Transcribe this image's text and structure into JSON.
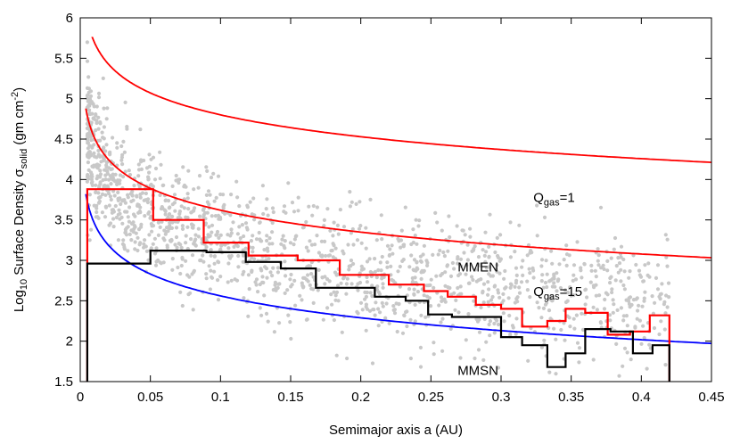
{
  "chart_data": {
    "type": "scatter",
    "xlabel": "Semimajor axis a (AU)",
    "ylabel": {
      "prefix": "Log",
      "prefix_sub": "10",
      "main": " Surface Density σ",
      "main_sub": "solid",
      "unit_open": " (gm cm",
      "unit_sup": "-2",
      "unit_close": ")"
    },
    "xlim": [
      0,
      0.45
    ],
    "ylim": [
      1.5,
      6
    ],
    "xticks": [
      "0",
      "0.05",
      "0.1",
      "0.15",
      "0.2",
      "0.25",
      "0.3",
      "0.35",
      "0.4",
      "0.45"
    ],
    "yticks": [
      "1.5",
      "2",
      "2.5",
      "3",
      "3.5",
      "4",
      "4.5",
      "5",
      "5.5",
      "6"
    ],
    "grid": false,
    "annotations": [
      {
        "id": "qgas1",
        "text": "Q",
        "sub": "gas",
        "rest": "=1",
        "x": 0.323,
        "y": 3.72
      },
      {
        "id": "mmen",
        "text": "MMEN",
        "sub": "",
        "rest": "",
        "x": 0.269,
        "y": 2.86
      },
      {
        "id": "qgas15",
        "text": "Q",
        "sub": "gas",
        "rest": "=15",
        "x": 0.323,
        "y": 2.56
      },
      {
        "id": "mmsn",
        "text": "MMSN",
        "sub": "",
        "rest": "",
        "x": 0.269,
        "y": 1.58
      }
    ],
    "series": [
      {
        "kind": "curve",
        "color": "#ff0000",
        "formula": "log10(sigma0 * a^-1.5)",
        "log10_norm_at_0.1AU": 4.8,
        "x_range": [
          0.0085,
          0.45
        ]
      },
      {
        "kind": "curve",
        "color": "#ff0000",
        "formula": "log10(sigma0 * a^-1.5)",
        "log10_norm_at_0.1AU": 3.62,
        "x_range": [
          0.004,
          0.45
        ]
      },
      {
        "kind": "curve",
        "color": "#0000ff",
        "formula": "log10(sigma0 * a^-1.5)",
        "log10_norm_at_0.1AU": 2.56,
        "x_range": [
          0.004,
          0.45
        ]
      },
      {
        "kind": "step",
        "color": "#ff0000",
        "edges": [
          0.005,
          0.052,
          0.088,
          0.12,
          0.155,
          0.185,
          0.22,
          0.245,
          0.262,
          0.282,
          0.3,
          0.315,
          0.333,
          0.346,
          0.36,
          0.376,
          0.392,
          0.406,
          0.42
        ],
        "values": [
          3.88,
          3.5,
          3.22,
          3.06,
          3.0,
          2.82,
          2.7,
          2.62,
          2.55,
          2.45,
          2.4,
          2.18,
          2.25,
          2.4,
          2.35,
          2.08,
          2.12,
          2.32
        ],
        "drop_to": 1.5
      },
      {
        "kind": "step",
        "color": "#000000",
        "edges": [
          0.005,
          0.05,
          0.09,
          0.118,
          0.143,
          0.168,
          0.21,
          0.232,
          0.248,
          0.265,
          0.285,
          0.3,
          0.315,
          0.333,
          0.346,
          0.36,
          0.378,
          0.394,
          0.408,
          0.42
        ],
        "values": [
          2.96,
          3.12,
          3.1,
          2.98,
          2.9,
          2.66,
          2.55,
          2.5,
          2.33,
          2.3,
          2.3,
          2.05,
          1.95,
          1.68,
          1.85,
          2.15,
          2.12,
          1.85,
          1.95
        ],
        "drop_to": 1.5
      },
      {
        "kind": "scatter",
        "color": "#c8c8c8",
        "n_points": 1600,
        "log10_center_at_0.1AU": 3.2,
        "slope": -1.5,
        "spread": 0.38,
        "x_range": [
          0.005,
          0.42
        ]
      }
    ]
  }
}
